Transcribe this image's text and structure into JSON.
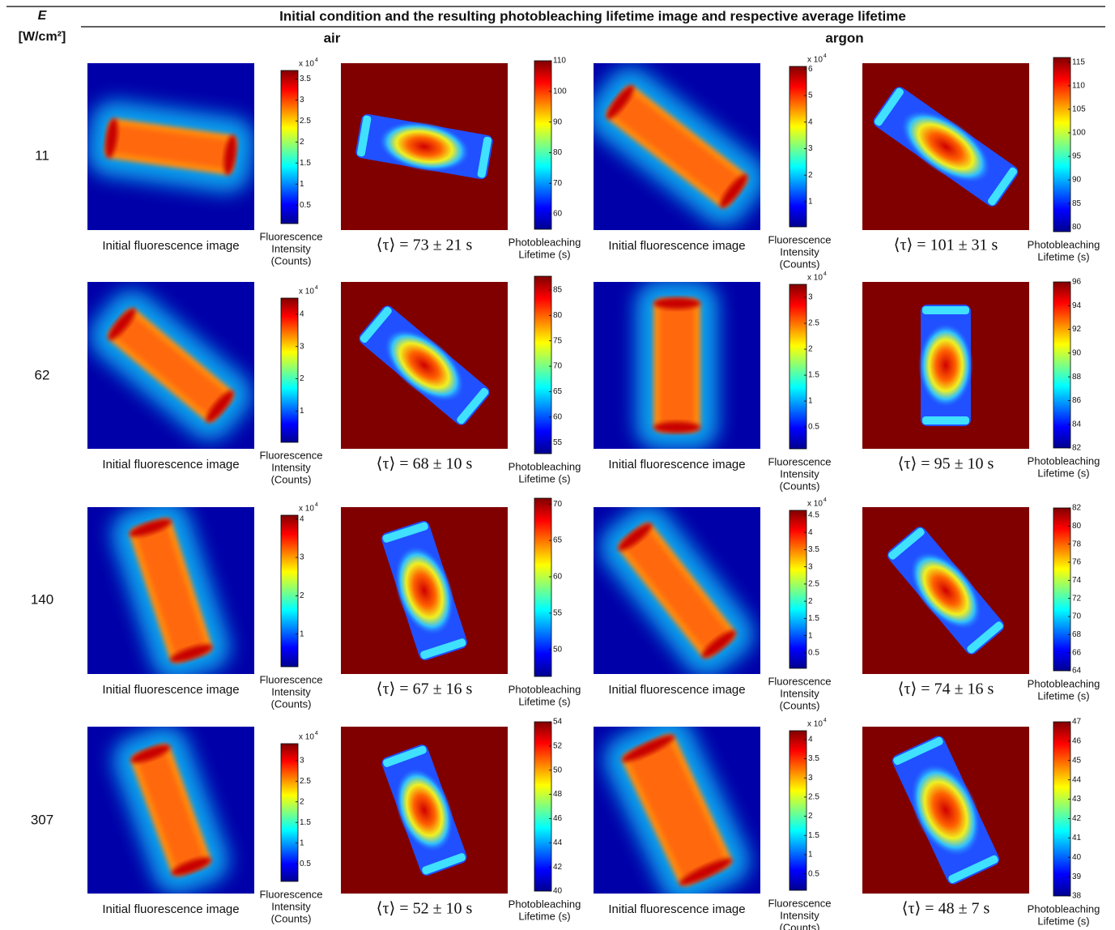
{
  "header": {
    "e_symbol": "E",
    "e_unit": "[W/cm²]",
    "title": "Initial condition and the resulting photobleaching lifetime image and respective average lifetime",
    "groups": [
      "air",
      "argon"
    ]
  },
  "rows": [
    {
      "e": "11",
      "panels": [
        {
          "caption": "Initial fluorescence image",
          "label": [
            "Fluorescence",
            "Intensity",
            "(Counts)"
          ],
          "multiplier": "x 10",
          "exponent": "4",
          "ticks": [
            0.5,
            1,
            1.5,
            2,
            2.5,
            3,
            3.5
          ],
          "range": [
            0.06,
            3.7
          ]
        },
        {
          "caption": "⟨τ⟩ = 73 ± 21 s",
          "label": [
            "Photobleaching",
            "Lifetime (s)"
          ],
          "ticks": [
            60,
            70,
            80,
            90,
            100,
            110
          ],
          "range": [
            55,
            110
          ]
        },
        {
          "caption": "Initial fluorescence image",
          "label": [
            "Fluorescence",
            "Intensity",
            "(Counts)"
          ],
          "multiplier": "x 10",
          "exponent": "4",
          "ticks": [
            1,
            2,
            3,
            4,
            5,
            6
          ],
          "range": [
            0.05,
            6.1
          ]
        },
        {
          "caption": "⟨τ⟩ = 101 ± 31 s",
          "label": [
            "Photobleaching",
            "Lifetime (s)"
          ],
          "ticks": [
            80,
            85,
            90,
            95,
            100,
            105,
            110,
            115
          ],
          "range": [
            79,
            116
          ]
        }
      ]
    },
    {
      "e": "62",
      "panels": [
        {
          "caption": "Initial fluorescence image",
          "label": [
            "Fluorescence",
            "Intensity",
            "(Counts)"
          ],
          "multiplier": "x 10",
          "exponent": "4",
          "ticks": [
            1,
            2,
            3,
            4
          ],
          "range": [
            0.03,
            4.5
          ]
        },
        {
          "caption": "⟨τ⟩ = 68 ± 10 s",
          "label": [
            "Photobleaching",
            "Lifetime (s)"
          ],
          "ticks": [
            55,
            60,
            65,
            70,
            75,
            80,
            85
          ],
          "range": [
            52.8,
            87.7
          ]
        },
        {
          "caption": "Initial fluorescence image",
          "label": [
            "Fluorescence",
            "Intensity",
            "(Counts)"
          ],
          "multiplier": "x 10",
          "exponent": "4",
          "ticks": [
            0.5,
            1,
            1.5,
            2,
            2.5,
            3
          ],
          "range": [
            0.08,
            3.25
          ]
        },
        {
          "caption": "⟨τ⟩ = 95 ± 10 s",
          "label": [
            "Photobleaching",
            "Lifetime (s)"
          ],
          "ticks": [
            82,
            84,
            86,
            88,
            90,
            92,
            94,
            96
          ],
          "range": [
            82,
            96
          ]
        }
      ]
    },
    {
      "e": "140",
      "panels": [
        {
          "caption": "Initial fluorescence image",
          "label": [
            "Fluorescence",
            "Intensity",
            "(Counts)"
          ],
          "multiplier": "x 10",
          "exponent": "4",
          "ticks": [
            1,
            2,
            3,
            4
          ],
          "range": [
            0.15,
            4.1
          ]
        },
        {
          "caption": "⟨τ⟩ = 67 ± 16 s",
          "label": [
            "Photobleaching",
            "Lifetime (s)"
          ],
          "ticks": [
            50,
            55,
            60,
            65,
            70
          ],
          "range": [
            46.3,
            70.8
          ]
        },
        {
          "caption": "Initial fluorescence image",
          "label": [
            "Fluorescence",
            "Intensity",
            "(Counts)"
          ],
          "multiplier": "x 10",
          "exponent": "4",
          "ticks": [
            0.5,
            1,
            1.5,
            2,
            2.5,
            3,
            3.5,
            4,
            4.5
          ],
          "range": [
            0.05,
            4.64
          ]
        },
        {
          "caption": "⟨τ⟩ = 74 ± 16 s",
          "label": [
            "Photobleaching",
            "Lifetime (s)"
          ],
          "ticks": [
            64,
            66,
            68,
            70,
            72,
            74,
            76,
            78,
            80,
            82
          ],
          "range": [
            64,
            82
          ]
        }
      ]
    },
    {
      "e": "307",
      "panels": [
        {
          "caption": "Initial fluorescence image",
          "label": [
            "Fluorescence",
            "Intensity",
            "(Counts)"
          ],
          "multiplier": "x 10",
          "exponent": "4",
          "ticks": [
            0.5,
            1,
            1.5,
            2,
            2.5,
            3
          ],
          "range": [
            0.07,
            3.41
          ]
        },
        {
          "caption": "⟨τ⟩ = 52 ± 10 s",
          "label": [
            "Photobleaching",
            "Lifetime (s)"
          ],
          "ticks": [
            40,
            42,
            44,
            46,
            48,
            50,
            52,
            54
          ],
          "range": [
            40,
            54
          ]
        },
        {
          "caption": "Initial fluorescence image",
          "label": [
            "Fluorescence",
            "Intensity",
            "(Counts)"
          ],
          "multiplier": "x 10",
          "exponent": "4",
          "ticks": [
            0.5,
            1,
            1.5,
            2,
            2.5,
            3,
            3.5,
            4
          ],
          "range": [
            0.07,
            4.23
          ]
        },
        {
          "caption": "⟨τ⟩ = 48 ± 7 s",
          "label": [
            "Photobleaching",
            "Lifetime (s)"
          ],
          "ticks": [
            38,
            39,
            40,
            41,
            42,
            43,
            44,
            45,
            46,
            47
          ],
          "range": [
            38,
            47
          ]
        }
      ]
    }
  ]
}
